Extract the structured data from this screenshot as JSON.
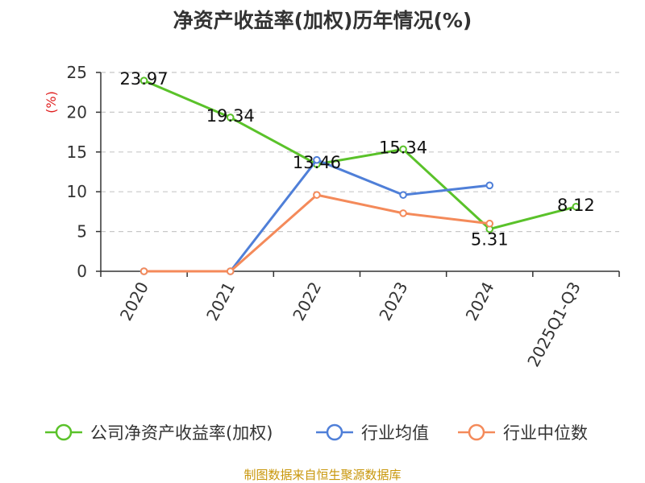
{
  "chart_data": {
    "type": "line",
    "title": "净资产收益率(加权)历年情况(%)",
    "ylabel": "(%)",
    "xlabel": "",
    "categories": [
      "2020",
      "2021",
      "2022",
      "2023",
      "2024",
      "2025Q1-Q3"
    ],
    "ylim": [
      0,
      25
    ],
    "yticks": [
      0,
      5,
      10,
      15,
      20,
      25
    ],
    "grid": true,
    "legend_position": "bottom",
    "series": [
      {
        "name": "公司净资产收益率(加权)",
        "color": "#5ac22a",
        "values": [
          23.97,
          19.34,
          13.46,
          15.34,
          5.31,
          8.12
        ],
        "labels": [
          "23.97",
          "19.34",
          "13.46",
          "15.34",
          "5.31",
          "8.12"
        ]
      },
      {
        "name": "行业均值",
        "color": "#4f7fd8",
        "values": [
          0,
          0,
          14.0,
          9.6,
          10.8,
          null
        ]
      },
      {
        "name": "行业中位数",
        "color": "#f48a5a",
        "values": [
          0,
          0,
          9.6,
          7.3,
          6.0,
          null
        ]
      }
    ],
    "source": "制图数据来自恒生聚源数据库"
  }
}
